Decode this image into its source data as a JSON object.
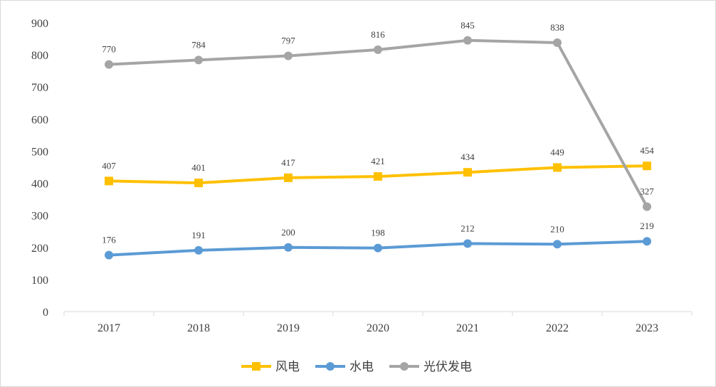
{
  "chart_data": {
    "type": "line",
    "title": "",
    "xlabel": "",
    "ylabel": "",
    "categories": [
      "2017",
      "2018",
      "2019",
      "2020",
      "2021",
      "2022",
      "2023"
    ],
    "ylim": [
      0,
      900
    ],
    "yticks": [
      "0",
      "100",
      "200",
      "300",
      "400",
      "500",
      "600",
      "700",
      "800",
      "900"
    ],
    "grid": false,
    "legend_position": "bottom",
    "series": [
      {
        "name": "风电",
        "values": [
          407,
          401,
          417,
          421,
          434,
          449,
          454
        ],
        "color": "#FFC000",
        "marker": "square"
      },
      {
        "name": "水电",
        "values": [
          176,
          191,
          200,
          198,
          212,
          210,
          219
        ],
        "color": "#5B9BD5",
        "marker": "circle"
      },
      {
        "name": "光伏发电",
        "values": [
          770,
          784,
          797,
          816,
          845,
          838,
          327
        ],
        "color": "#A5A5A5",
        "marker": "circle"
      }
    ]
  }
}
